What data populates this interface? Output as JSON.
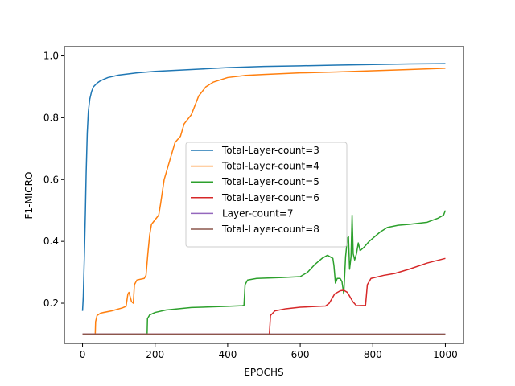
{
  "chart_data": {
    "type": "line",
    "xlabel": "EPOCHS",
    "ylabel": "F1-MICRO",
    "xlim": [
      -50,
      1050
    ],
    "ylim": [
      0.07,
      1.03
    ],
    "xticks": [
      0,
      200,
      400,
      600,
      800,
      1000
    ],
    "yticks": [
      0.2,
      0.4,
      0.6,
      0.8,
      1.0
    ],
    "xtick_labels": [
      "0",
      "200",
      "400",
      "600",
      "800",
      "1000"
    ],
    "ytick_labels": [
      "0.2",
      "0.4",
      "0.6",
      "0.8",
      "1.0"
    ],
    "legend_position": "center",
    "grid": false,
    "series": [
      {
        "name": "Total-Layer-count=3",
        "color": "#1f77b4",
        "points": [
          [
            0,
            0.175
          ],
          [
            2,
            0.22
          ],
          [
            5,
            0.35
          ],
          [
            8,
            0.5
          ],
          [
            10,
            0.62
          ],
          [
            13,
            0.75
          ],
          [
            16,
            0.82
          ],
          [
            20,
            0.86
          ],
          [
            25,
            0.885
          ],
          [
            30,
            0.9
          ],
          [
            40,
            0.912
          ],
          [
            50,
            0.92
          ],
          [
            70,
            0.93
          ],
          [
            100,
            0.938
          ],
          [
            150,
            0.945
          ],
          [
            200,
            0.95
          ],
          [
            300,
            0.956
          ],
          [
            400,
            0.962
          ],
          [
            500,
            0.966
          ],
          [
            600,
            0.968
          ],
          [
            700,
            0.97
          ],
          [
            800,
            0.972
          ],
          [
            900,
            0.974
          ],
          [
            1000,
            0.975
          ]
        ]
      },
      {
        "name": "Total-Layer-count=4",
        "color": "#ff7f0e",
        "points": [
          [
            0,
            0.1
          ],
          [
            35,
            0.1
          ],
          [
            36,
            0.14
          ],
          [
            40,
            0.16
          ],
          [
            50,
            0.168
          ],
          [
            80,
            0.175
          ],
          [
            110,
            0.185
          ],
          [
            120,
            0.19
          ],
          [
            125,
            0.23
          ],
          [
            128,
            0.235
          ],
          [
            135,
            0.205
          ],
          [
            140,
            0.2
          ],
          [
            143,
            0.26
          ],
          [
            150,
            0.275
          ],
          [
            170,
            0.28
          ],
          [
            175,
            0.29
          ],
          [
            180,
            0.36
          ],
          [
            185,
            0.42
          ],
          [
            190,
            0.455
          ],
          [
            200,
            0.47
          ],
          [
            210,
            0.485
          ],
          [
            215,
            0.52
          ],
          [
            225,
            0.6
          ],
          [
            240,
            0.66
          ],
          [
            255,
            0.72
          ],
          [
            270,
            0.74
          ],
          [
            280,
            0.78
          ],
          [
            300,
            0.81
          ],
          [
            310,
            0.84
          ],
          [
            320,
            0.87
          ],
          [
            340,
            0.9
          ],
          [
            360,
            0.915
          ],
          [
            400,
            0.93
          ],
          [
            450,
            0.937
          ],
          [
            500,
            0.94
          ],
          [
            600,
            0.945
          ],
          [
            700,
            0.948
          ],
          [
            800,
            0.952
          ],
          [
            900,
            0.956
          ],
          [
            1000,
            0.96
          ]
        ]
      },
      {
        "name": "Total-Layer-count=5",
        "color": "#2ca02c",
        "points": [
          [
            0,
            0.1
          ],
          [
            178,
            0.1
          ],
          [
            179,
            0.15
          ],
          [
            185,
            0.162
          ],
          [
            200,
            0.17
          ],
          [
            230,
            0.178
          ],
          [
            300,
            0.186
          ],
          [
            400,
            0.19
          ],
          [
            440,
            0.192
          ],
          [
            445,
            0.193
          ],
          [
            448,
            0.26
          ],
          [
            455,
            0.275
          ],
          [
            480,
            0.28
          ],
          [
            550,
            0.283
          ],
          [
            600,
            0.286
          ],
          [
            620,
            0.3
          ],
          [
            640,
            0.325
          ],
          [
            660,
            0.345
          ],
          [
            675,
            0.355
          ],
          [
            690,
            0.345
          ],
          [
            693,
            0.32
          ],
          [
            697,
            0.265
          ],
          [
            702,
            0.28
          ],
          [
            710,
            0.28
          ],
          [
            715,
            0.27
          ],
          [
            720,
            0.23
          ],
          [
            725,
            0.35
          ],
          [
            730,
            0.41
          ],
          [
            733,
            0.415
          ],
          [
            736,
            0.31
          ],
          [
            740,
            0.35
          ],
          [
            743,
            0.485
          ],
          [
            746,
            0.36
          ],
          [
            750,
            0.34
          ],
          [
            755,
            0.36
          ],
          [
            760,
            0.395
          ],
          [
            765,
            0.37
          ],
          [
            775,
            0.38
          ],
          [
            790,
            0.4
          ],
          [
            800,
            0.41
          ],
          [
            820,
            0.43
          ],
          [
            840,
            0.445
          ],
          [
            870,
            0.452
          ],
          [
            900,
            0.455
          ],
          [
            950,
            0.462
          ],
          [
            980,
            0.475
          ],
          [
            995,
            0.485
          ],
          [
            1000,
            0.5
          ]
        ]
      },
      {
        "name": "Total-Layer-count=6",
        "color": "#d62728",
        "points": [
          [
            0,
            0.1
          ],
          [
            515,
            0.1
          ],
          [
            518,
            0.16
          ],
          [
            530,
            0.175
          ],
          [
            560,
            0.182
          ],
          [
            600,
            0.187
          ],
          [
            650,
            0.19
          ],
          [
            670,
            0.191
          ],
          [
            680,
            0.2
          ],
          [
            695,
            0.23
          ],
          [
            710,
            0.24
          ],
          [
            720,
            0.242
          ],
          [
            730,
            0.235
          ],
          [
            745,
            0.205
          ],
          [
            755,
            0.192
          ],
          [
            780,
            0.193
          ],
          [
            785,
            0.26
          ],
          [
            795,
            0.28
          ],
          [
            830,
            0.29
          ],
          [
            860,
            0.296
          ],
          [
            900,
            0.31
          ],
          [
            950,
            0.33
          ],
          [
            1000,
            0.345
          ]
        ]
      },
      {
        "name": "Layer-count=7",
        "color": "#9467bd",
        "points": [
          [
            0,
            0.1
          ],
          [
            1000,
            0.1
          ]
        ]
      },
      {
        "name": "Total-Layer-count=8",
        "color": "#8c564b",
        "points": [
          [
            0,
            0.1
          ],
          [
            1000,
            0.1
          ]
        ]
      }
    ]
  }
}
